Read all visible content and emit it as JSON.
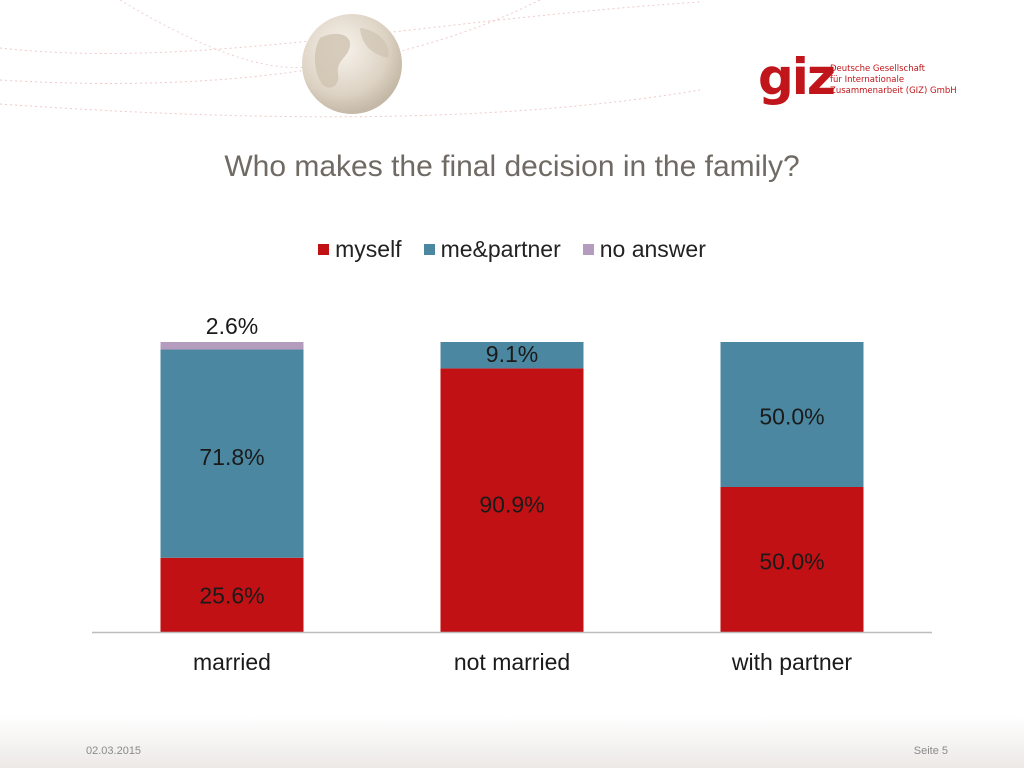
{
  "logo": {
    "mark": "giz",
    "lines": [
      "Deutsche Gesellschaft",
      "für Internationale",
      "Zusammenarbeit (GIZ) GmbH"
    ]
  },
  "footer": {
    "date": "02.03.2015",
    "page": "Seite 5"
  },
  "chart_data": {
    "type": "bar",
    "stacked": true,
    "title": "Who makes the final decision in the family?",
    "categories": [
      "married",
      "not married",
      "with partner"
    ],
    "series": [
      {
        "name": "myself",
        "color": "#c21114",
        "values": [
          25.6,
          90.9,
          50.0
        ],
        "labels": [
          "25.6%",
          "90.9%",
          "50.0%"
        ]
      },
      {
        "name": "me&partner",
        "color": "#4b87a0",
        "values": [
          71.8,
          9.1,
          50.0
        ],
        "labels": [
          "71.8%",
          "9.1%",
          "50.0%"
        ]
      },
      {
        "name": "no answer",
        "color": "#b39cbd",
        "values": [
          2.6,
          0,
          0
        ],
        "labels": [
          "2.6%",
          "",
          ""
        ]
      }
    ],
    "ylim": [
      0,
      100
    ],
    "grid": false,
    "legend_position": "top"
  }
}
